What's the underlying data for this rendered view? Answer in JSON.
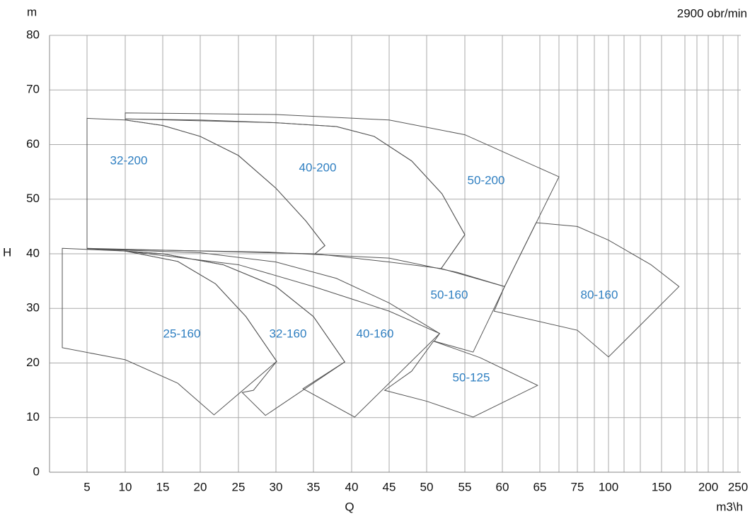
{
  "chart_data": {
    "type": "region",
    "subtitle": "2900 obr/min",
    "y_unit": "m",
    "y_label": "H",
    "x_label": "Q",
    "x_unit": "m3\\h",
    "xlim": [
      0,
      250
    ],
    "xticks": [
      5,
      10,
      15,
      20,
      25,
      30,
      35,
      40,
      45,
      50,
      55,
      60,
      65,
      75,
      100,
      150,
      200,
      250
    ],
    "ylim": [
      0,
      80
    ],
    "yticks": [
      0,
      10,
      20,
      30,
      40,
      50,
      60,
      70,
      80
    ],
    "grid": true,
    "outline_color": "#555555",
    "label_color": "#2f7fc1",
    "regions": [
      {
        "name": "32-200",
        "points": [
          [
            5,
            64.8
          ],
          [
            10,
            64.5
          ],
          [
            15,
            63.5
          ],
          [
            20,
            61.5
          ],
          [
            25,
            58
          ],
          [
            30,
            52
          ],
          [
            34,
            46
          ],
          [
            36.5,
            41.5
          ],
          [
            35.2,
            40
          ],
          [
            5,
            41
          ]
        ]
      },
      {
        "name": "40-200",
        "points": [
          [
            10,
            64.7
          ],
          [
            20,
            64.5
          ],
          [
            30,
            64
          ],
          [
            38,
            63.3
          ],
          [
            43,
            61.5
          ],
          [
            48,
            57
          ],
          [
            52,
            51
          ],
          [
            55,
            43.5
          ],
          [
            51.9,
            37.3
          ],
          [
            45,
            38.5
          ],
          [
            35.2,
            40
          ],
          [
            36.5,
            41.5
          ],
          [
            34,
            46
          ],
          [
            30,
            52
          ],
          [
            25,
            58
          ],
          [
            20,
            61.5
          ],
          [
            15,
            63.5
          ],
          [
            10,
            64.5
          ]
        ]
      },
      {
        "name": "50-200",
        "points": [
          [
            10,
            65.8
          ],
          [
            30,
            65.5
          ],
          [
            45,
            64.5
          ],
          [
            55,
            61.8
          ],
          [
            62,
            57.5
          ],
          [
            70.1,
            54.1
          ],
          [
            60.3,
            34
          ],
          [
            51.9,
            37.3
          ],
          [
            55,
            43.5
          ],
          [
            52,
            51
          ],
          [
            48,
            57
          ],
          [
            43,
            61.5
          ],
          [
            38,
            63.3
          ],
          [
            30,
            64
          ],
          [
            10,
            64.7
          ]
        ]
      },
      {
        "name": "50-160",
        "points": [
          [
            5,
            40.9
          ],
          [
            29,
            40.3
          ],
          [
            45,
            39.2
          ],
          [
            54,
            36.6
          ],
          [
            60.3,
            34
          ],
          [
            56.1,
            22
          ],
          [
            51,
            24
          ],
          [
            51.7,
            25.4
          ],
          [
            45,
            31
          ],
          [
            38,
            35.5
          ],
          [
            30,
            38.5
          ],
          [
            20,
            40.2
          ],
          [
            5,
            40.9
          ]
        ]
      },
      {
        "name": "80-160",
        "points": [
          [
            64.5,
            45.7
          ],
          [
            75,
            45
          ],
          [
            100,
            42.5
          ],
          [
            140,
            38
          ],
          [
            168.7,
            34
          ],
          [
            100,
            21.1
          ],
          [
            75,
            26
          ],
          [
            58.9,
            29.5
          ],
          [
            60.3,
            34
          ]
        ]
      },
      {
        "name": "25-160",
        "points": [
          [
            1.7,
            41
          ],
          [
            10,
            40.5
          ],
          [
            17,
            38.6
          ],
          [
            22,
            34.5
          ],
          [
            26,
            28.5
          ],
          [
            30.1,
            20.3
          ],
          [
            21.8,
            10.5
          ],
          [
            17,
            16.3
          ],
          [
            10,
            20.6
          ],
          [
            1.7,
            22.8
          ]
        ]
      },
      {
        "name": "32-160",
        "points": [
          [
            5,
            41
          ],
          [
            15,
            40
          ],
          [
            23,
            38
          ],
          [
            30,
            34
          ],
          [
            35,
            28.5
          ],
          [
            39.1,
            20.2
          ],
          [
            28.6,
            10.4
          ],
          [
            25.5,
            14.6
          ],
          [
            27,
            15
          ],
          [
            30.1,
            20.3
          ],
          [
            26,
            28.5
          ],
          [
            22,
            34.5
          ],
          [
            17,
            38.6
          ],
          [
            10,
            40.5
          ]
        ]
      },
      {
        "name": "40-160",
        "points": [
          [
            10,
            40.5
          ],
          [
            25,
            38
          ],
          [
            35,
            34
          ],
          [
            45,
            29.5
          ],
          [
            51.7,
            25.4
          ],
          [
            40.4,
            10.1
          ],
          [
            33.6,
            15.3
          ],
          [
            39.1,
            20.2
          ],
          [
            35,
            28.5
          ],
          [
            30,
            34
          ],
          [
            23,
            38
          ],
          [
            15,
            40
          ]
        ]
      },
      {
        "name": "50-125",
        "points": [
          [
            50.9,
            24
          ],
          [
            57,
            21
          ],
          [
            64.7,
            15.9
          ],
          [
            56.1,
            10.1
          ],
          [
            50,
            13
          ],
          [
            44.4,
            15
          ],
          [
            48,
            18.5
          ]
        ]
      }
    ]
  }
}
